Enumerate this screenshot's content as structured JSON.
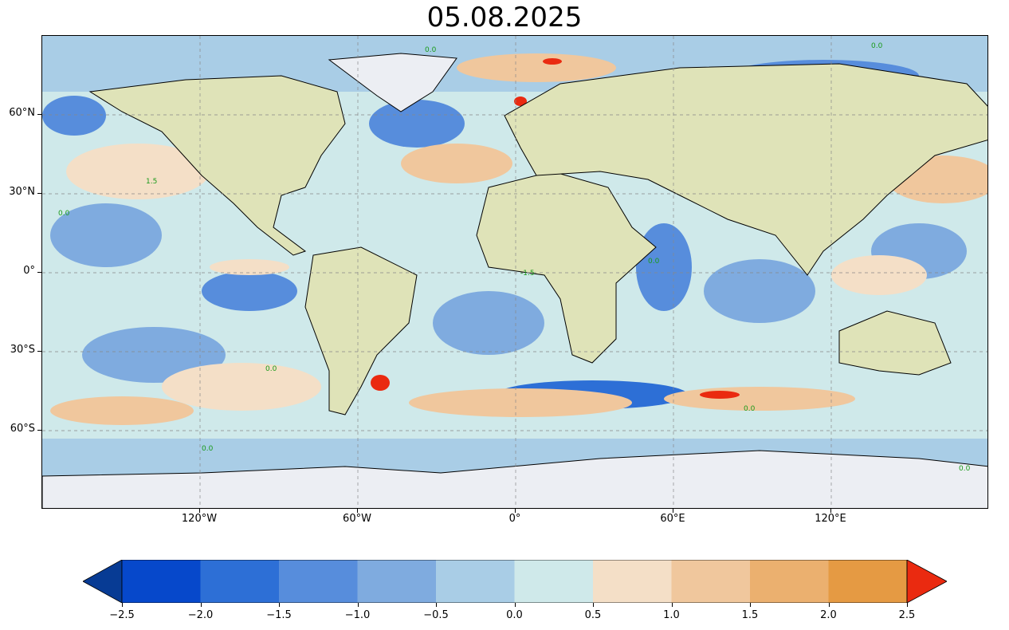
{
  "title": "05.08.2025",
  "map": {
    "lat_ticks": [
      "60°N",
      "30°N",
      "0°",
      "30°S",
      "60°S"
    ],
    "lon_ticks": [
      "120°W",
      "60°W",
      "0°",
      "60°E",
      "120°E"
    ],
    "contour_labels": [
      "0.0",
      "1.5",
      "-1.5"
    ]
  },
  "colorbar": {
    "tick_labels": [
      "−2.5",
      "−2.0",
      "−1.5",
      "−1.0",
      "−0.5",
      "0.0",
      "0.5",
      "1.0",
      "1.5",
      "2.0",
      "2.5"
    ],
    "colors": [
      "#073b94",
      "#0648cb",
      "#2d6fd6",
      "#578ddc",
      "#7fabdf",
      "#a9cde6",
      "#cfe9ea",
      "#f4dfc7",
      "#f0c79d",
      "#ebb06f",
      "#e59a43",
      "#ea2a10"
    ],
    "extend": "both"
  }
}
